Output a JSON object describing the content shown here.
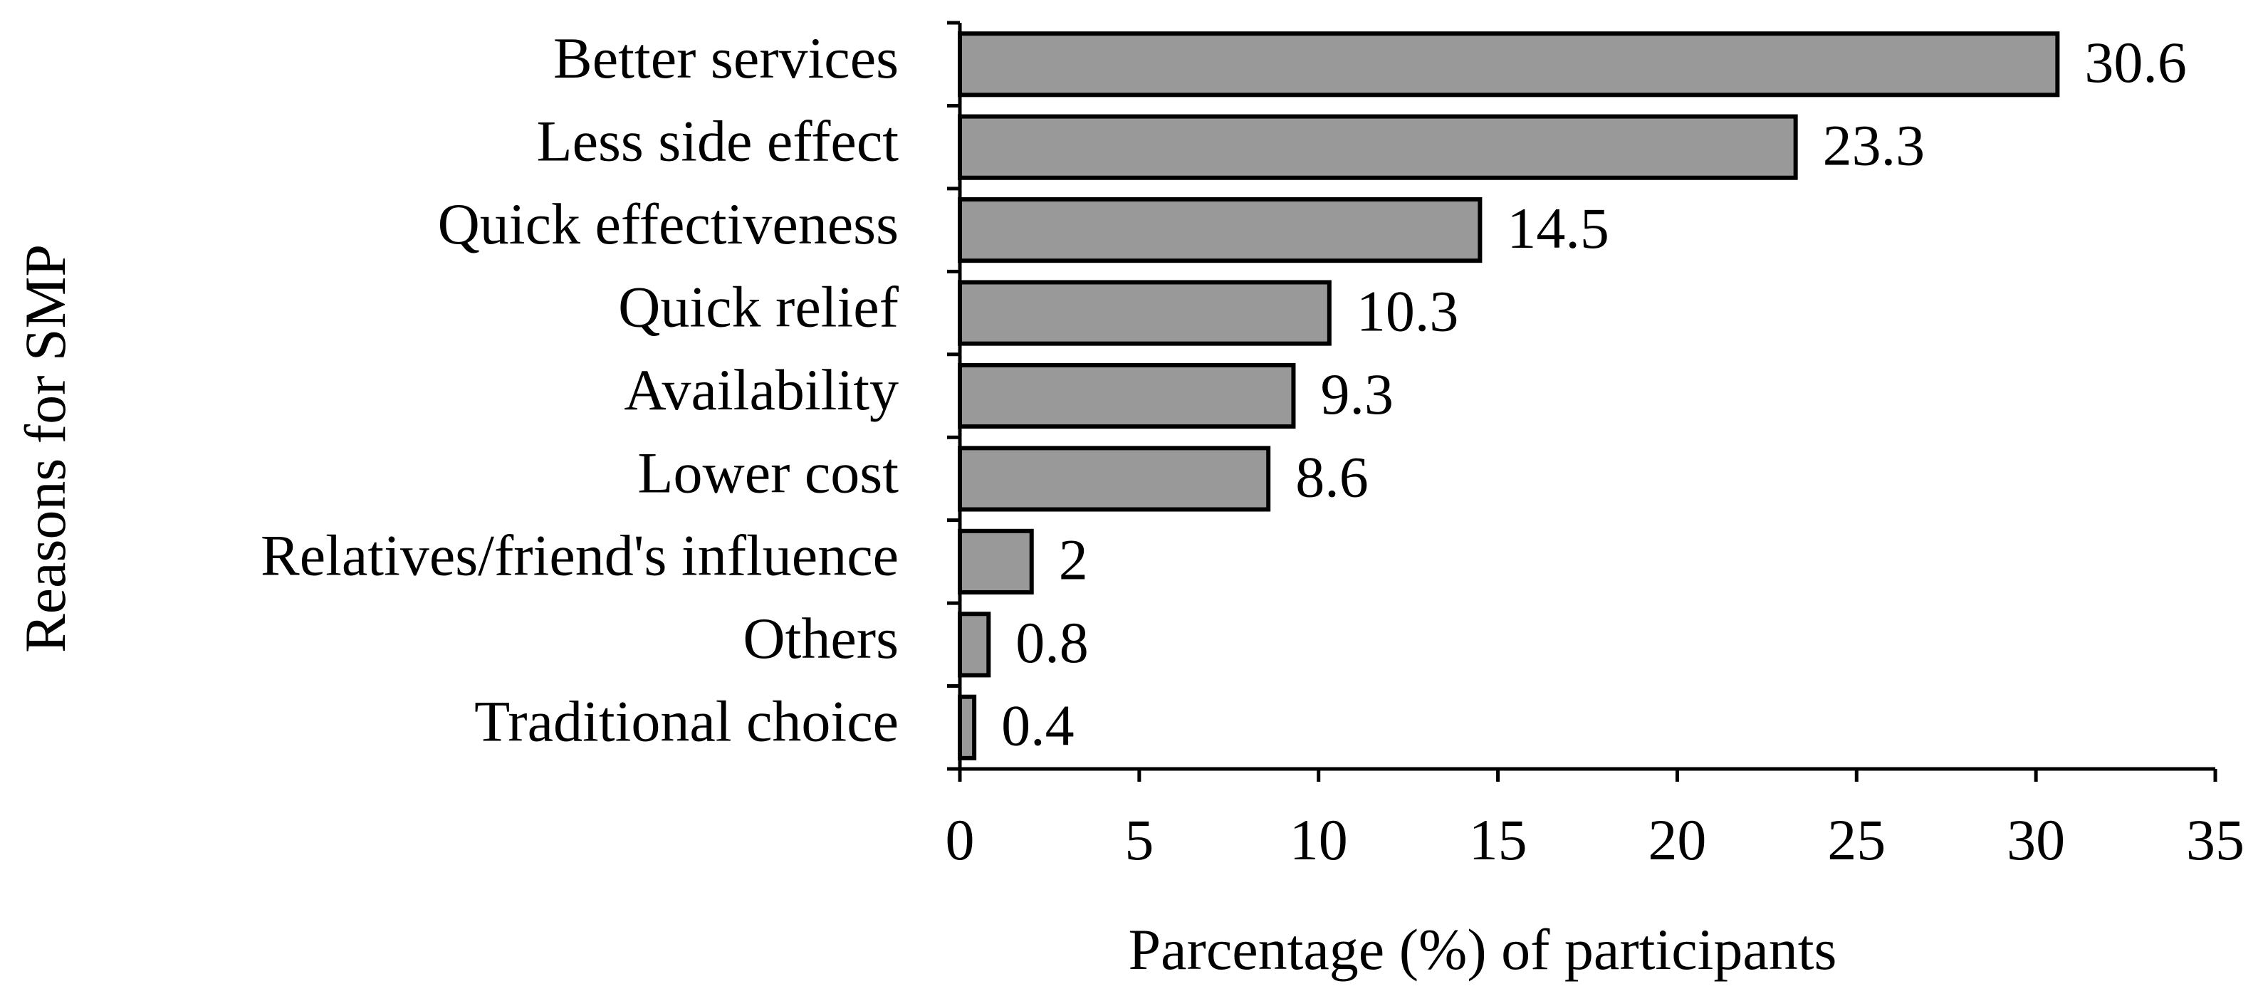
{
  "chart_data": {
    "type": "bar",
    "orientation": "horizontal",
    "x_label": "Parcentage (%) of participants",
    "y_label": "Reasons for SMP",
    "categories": [
      "Better services",
      "Less side effect",
      "Quick effectiveness",
      "Quick relief",
      "Availability",
      "Lower cost",
      "Relatives/friend's influence",
      "Others",
      "Traditional choice"
    ],
    "values": [
      30.6,
      23.3,
      14.5,
      10.3,
      9.3,
      8.6,
      2,
      0.8,
      0.4
    ],
    "color": "#999999",
    "xlim": [
      0,
      35
    ],
    "xticks": [
      0,
      5,
      10,
      15,
      20,
      25,
      30,
      35
    ],
    "grid": false
  }
}
